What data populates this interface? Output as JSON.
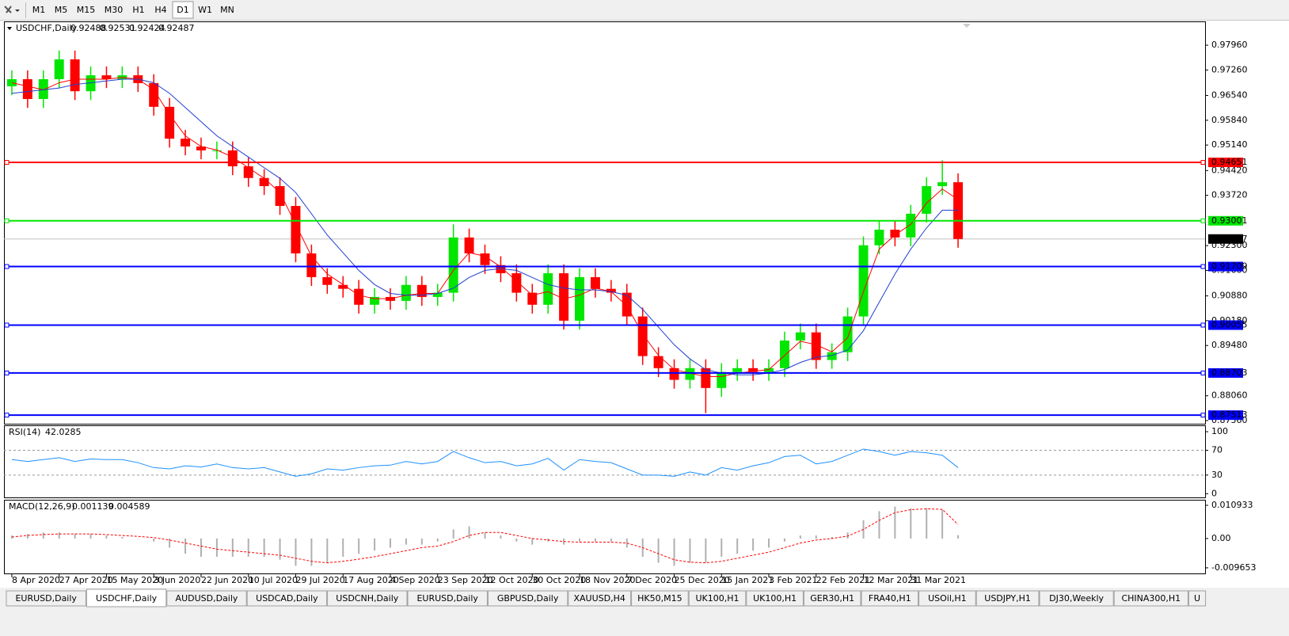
{
  "toolbar": {
    "timeframes": [
      "M1",
      "M5",
      "M15",
      "M30",
      "H1",
      "H4",
      "D1",
      "W1",
      "MN"
    ],
    "active": "D1"
  },
  "chart_data": [
    {
      "type": "candlestick",
      "title": "USDCHF,Daily",
      "quote": [
        0.92488,
        0.92531,
        0.92424,
        0.92487
      ],
      "categories": [
        "8 Apr 2020",
        null,
        null,
        "27 Apr 2020",
        null,
        null,
        "15 May 2020",
        null,
        null,
        "3 Jun 2020",
        null,
        null,
        "22 Jun 2020",
        null,
        null,
        "10 Jul 2020",
        null,
        null,
        "29 Jul 2020",
        null,
        null,
        "17 Aug 2020",
        null,
        null,
        "4 Sep 2020",
        null,
        null,
        "23 Sep 2020",
        null,
        null,
        "12 Oct 2020",
        null,
        null,
        "30 Oct 2020",
        null,
        null,
        "18 Nov 2020",
        null,
        null,
        "7 Dec 2020",
        null,
        null,
        "25 Dec 2020",
        null,
        null,
        "15 Jan 2021",
        null,
        null,
        "3 Feb 2021",
        null,
        null,
        "22 Feb 2021",
        null,
        null,
        "12 Mar 2021",
        null,
        null,
        "31 Mar 2021",
        null,
        null,
        null
      ],
      "open": [
        0.968,
        0.97,
        0.9644,
        0.97,
        0.9756,
        0.9666,
        0.9711,
        0.97,
        0.9711,
        0.9689,
        0.9622,
        0.9532,
        0.951,
        0.9499,
        0.9499,
        0.9454,
        0.9421,
        0.9398,
        0.9342,
        0.9208,
        0.9141,
        0.9119,
        0.9108,
        0.9063,
        0.9085,
        0.9074,
        0.9119,
        0.9085,
        0.9097,
        0.9253,
        0.9208,
        0.9175,
        0.9152,
        0.9097,
        0.9063,
        0.9152,
        0.9018,
        0.9141,
        0.9108,
        0.9097,
        0.903,
        0.8918,
        0.8884,
        0.8851,
        0.8884,
        0.8828,
        0.8873,
        0.8884,
        0.8873,
        0.8884,
        0.8962,
        0.8985,
        0.8907,
        0.8929,
        0.903,
        0.9231,
        0.9275,
        0.9253,
        0.932,
        0.9398,
        0.9409
      ],
      "high": [
        0.9725,
        0.9725,
        0.9725,
        0.9781,
        0.9781,
        0.9736,
        0.9736,
        0.9736,
        0.9736,
        0.9714,
        0.9647,
        0.9557,
        0.9535,
        0.9524,
        0.9524,
        0.9479,
        0.9446,
        0.9423,
        0.9367,
        0.9233,
        0.9166,
        0.9144,
        0.9133,
        0.911,
        0.911,
        0.9144,
        0.9144,
        0.9122,
        0.929,
        0.9278,
        0.9233,
        0.92,
        0.9177,
        0.9122,
        0.9177,
        0.9177,
        0.9166,
        0.9166,
        0.9133,
        0.9122,
        0.9055,
        0.8943,
        0.8909,
        0.8909,
        0.8909,
        0.8898,
        0.8909,
        0.8909,
        0.8909,
        0.8987,
        0.901,
        0.901,
        0.8954,
        0.9055,
        0.9256,
        0.93,
        0.93,
        0.9345,
        0.9423,
        0.9471,
        0.9434
      ],
      "low": [
        0.9655,
        0.9619,
        0.9619,
        0.9675,
        0.9641,
        0.9641,
        0.9675,
        0.9675,
        0.9664,
        0.9597,
        0.9507,
        0.9485,
        0.9474,
        0.9474,
        0.9429,
        0.9396,
        0.9373,
        0.9317,
        0.9183,
        0.9116,
        0.9094,
        0.9083,
        0.9038,
        0.9038,
        0.9049,
        0.9049,
        0.906,
        0.906,
        0.9072,
        0.9183,
        0.915,
        0.9127,
        0.9072,
        0.9038,
        0.9038,
        0.8993,
        0.8993,
        0.9083,
        0.9072,
        0.9005,
        0.8893,
        0.8859,
        0.8826,
        0.8826,
        0.8757,
        0.8803,
        0.8848,
        0.8848,
        0.8848,
        0.8859,
        0.8937,
        0.8882,
        0.8882,
        0.8904,
        0.9005,
        0.9206,
        0.9228,
        0.9228,
        0.9295,
        0.9373,
        0.9224
      ],
      "close": [
        0.97,
        0.9644,
        0.97,
        0.9756,
        0.9666,
        0.9711,
        0.97,
        0.9711,
        0.9689,
        0.9622,
        0.9532,
        0.951,
        0.9499,
        0.9499,
        0.9454,
        0.9421,
        0.9398,
        0.9342,
        0.9208,
        0.9141,
        0.9119,
        0.9108,
        0.9063,
        0.9085,
        0.9074,
        0.9119,
        0.9085,
        0.9097,
        0.9253,
        0.9208,
        0.9175,
        0.9152,
        0.9097,
        0.9063,
        0.9152,
        0.9018,
        0.9141,
        0.9108,
        0.9097,
        0.903,
        0.8918,
        0.8884,
        0.8851,
        0.8884,
        0.8828,
        0.8873,
        0.8884,
        0.8873,
        0.8884,
        0.8962,
        0.8985,
        0.8907,
        0.8929,
        0.903,
        0.9231,
        0.9275,
        0.9253,
        0.932,
        0.9398,
        0.9409,
        0.92487
      ],
      "up_color": "#00e600",
      "down_color": "#ff0000",
      "lines": [
        {
          "color": "#ff0000",
          "values": [
            0.969,
            0.968,
            0.967,
            0.969,
            0.97,
            0.97,
            0.97,
            0.9705,
            0.97,
            0.967,
            0.96,
            0.954,
            0.951,
            0.95,
            0.948,
            0.945,
            0.942,
            0.938,
            0.929,
            0.92,
            0.915,
            0.912,
            0.909,
            0.908,
            0.908,
            0.909,
            0.9095,
            0.9095,
            0.916,
            0.921,
            0.92,
            0.917,
            0.913,
            0.909,
            0.91,
            0.908,
            0.909,
            0.911,
            0.91,
            0.906,
            0.898,
            0.892,
            0.888,
            0.887,
            0.886,
            0.886,
            0.887,
            0.8875,
            0.888,
            0.892,
            0.896,
            0.895,
            0.893,
            0.897,
            0.91,
            0.922,
            0.926,
            0.929,
            0.935,
            0.939,
            0.936
          ]
        },
        {
          "color": "#1f3fd0",
          "values": [
            0.966,
            0.9665,
            0.967,
            0.9675,
            0.9685,
            0.969,
            0.9695,
            0.97,
            0.97,
            0.969,
            0.966,
            0.962,
            0.958,
            0.954,
            0.951,
            0.948,
            0.945,
            0.942,
            0.938,
            0.932,
            0.926,
            0.921,
            0.916,
            0.912,
            0.9095,
            0.909,
            0.909,
            0.9095,
            0.911,
            0.914,
            0.916,
            0.9165,
            0.916,
            0.914,
            0.912,
            0.911,
            0.9105,
            0.9105,
            0.91,
            0.909,
            0.905,
            0.9,
            0.895,
            0.891,
            0.888,
            0.887,
            0.8865,
            0.8865,
            0.887,
            0.888,
            0.89,
            0.8915,
            0.892,
            0.8935,
            0.899,
            0.907,
            0.915,
            0.922,
            0.928,
            0.933,
            0.933
          ]
        }
      ],
      "levels": [
        {
          "value": 0.94651,
          "color": "#ff0000"
        },
        {
          "value": 0.93001,
          "color": "#00e600"
        },
        {
          "value": 0.91709,
          "color": "#0000ff"
        },
        {
          "value": 0.90055,
          "color": "#0000ff"
        },
        {
          "value": 0.88703,
          "color": "#0000ff"
        },
        {
          "value": 0.87513,
          "color": "#0000ff"
        }
      ],
      "current": 0.92487,
      "ylim": [
        0.8727,
        0.9861
      ],
      "yticks": [
        {
          "value": 0.9796,
          "label": "0.97960"
        },
        {
          "value": 0.9726,
          "label": "0.97260"
        },
        {
          "value": 0.9654,
          "label": "0.96540"
        },
        {
          "value": 0.9584,
          "label": "0.95840"
        },
        {
          "value": 0.9514,
          "label": "0.95140"
        },
        {
          "value": 0.9442,
          "label": "0.94420"
        },
        {
          "value": 0.9372,
          "label": "0.93720"
        },
        {
          "value": 0.923,
          "label": "0.92300"
        },
        {
          "value": 0.916,
          "label": "0.91600"
        },
        {
          "value": 0.9088,
          "label": "0.90880"
        },
        {
          "value": 0.9018,
          "label": "0.90180"
        },
        {
          "value": 0.8948,
          "label": "0.89480"
        },
        {
          "value": 0.8806,
          "label": "0.88060"
        },
        {
          "value": 0.8736,
          "label": "0.87360"
        }
      ]
    },
    {
      "type": "line",
      "title": "RSI(14)",
      "reading": 42.0285,
      "color": "#1e90ff",
      "values": [
        55,
        52,
        55,
        58,
        52,
        56,
        55,
        55,
        50,
        42,
        40,
        45,
        43,
        48,
        42,
        40,
        42,
        35,
        28,
        32,
        40,
        38,
        42,
        45,
        46,
        52,
        48,
        52,
        68,
        58,
        50,
        52,
        45,
        48,
        57,
        38,
        55,
        52,
        50,
        40,
        30,
        30,
        28,
        35,
        30,
        42,
        38,
        45,
        50,
        60,
        62,
        48,
        52,
        62,
        72,
        68,
        62,
        68,
        66,
        62,
        42
      ],
      "levels": [
        70,
        30
      ],
      "ylim": [
        -6,
        109
      ],
      "yticks": [
        100,
        70,
        30,
        0
      ]
    },
    {
      "type": "macd",
      "title": "MACD(12,26,9)",
      "reading": [
        0.001139,
        0.004589
      ],
      "hist_color": "#b0b0b0",
      "signal_color": "#ff0000",
      "histogram": [
        0.001,
        0.0015,
        0.002,
        0.002,
        0.0015,
        0.0015,
        0.001,
        0.0005,
        0,
        -0.001,
        -0.003,
        -0.005,
        -0.006,
        -0.006,
        -0.006,
        -0.006,
        -0.006,
        -0.007,
        -0.009,
        -0.009,
        -0.008,
        -0.006,
        -0.005,
        -0.004,
        -0.003,
        -0.002,
        -0.002,
        -0.001,
        0.003,
        0.004,
        0.002,
        0.001,
        -0.001,
        -0.002,
        -0.001,
        -0.002,
        -0.001,
        -0.001,
        -0.001,
        -0.003,
        -0.006,
        -0.008,
        -0.009,
        -0.008,
        -0.008,
        -0.006,
        -0.005,
        -0.004,
        -0.003,
        -0.001,
        0.001,
        0.001,
        0.0005,
        0.002,
        0.006,
        0.009,
        0.0105,
        0.01,
        0.01,
        0.0095,
        0.0011
      ],
      "signal": [
        0.0005,
        0.001,
        0.0013,
        0.0015,
        0.0015,
        0.0015,
        0.0013,
        0.001,
        0.0007,
        0.0003,
        -0.0005,
        -0.0015,
        -0.0025,
        -0.0035,
        -0.004,
        -0.0045,
        -0.005,
        -0.0055,
        -0.0065,
        -0.0075,
        -0.008,
        -0.0075,
        -0.0068,
        -0.006,
        -0.005,
        -0.004,
        -0.003,
        -0.0025,
        -0.001,
        0.001,
        0.002,
        0.002,
        0.001,
        0,
        -0.0005,
        -0.001,
        -0.0012,
        -0.0012,
        -0.0012,
        -0.0015,
        -0.003,
        -0.005,
        -0.007,
        -0.0078,
        -0.008,
        -0.0075,
        -0.0065,
        -0.0055,
        -0.0045,
        -0.003,
        -0.0015,
        -0.0005,
        0,
        0.0008,
        0.003,
        0.006,
        0.0085,
        0.0095,
        0.0098,
        0.0096,
        0.0046
      ],
      "ylim": [
        -0.0115,
        0.0125
      ],
      "yticks": [
        0.010933,
        {
          "value": 0,
          "label": "0.00"
        },
        -0.009653
      ]
    }
  ],
  "tabs": {
    "items": [
      "EURUSD,Daily",
      "USDCHF,Daily",
      "AUDUSD,Daily",
      "USDCAD,Daily",
      "USDCNH,Daily",
      "EURUSD,Daily",
      "GBPUSD,Daily",
      "XAUUSD,H4",
      "HK50,M15",
      "UK100,H1",
      "UK100,H1",
      "GER30,H1",
      "FRA40,H1",
      "USOil,H1",
      "USDJPY,H1",
      "DJ30,Weekly",
      "CHINA300,H1",
      "U"
    ],
    "active": "USDCHF,Daily"
  }
}
